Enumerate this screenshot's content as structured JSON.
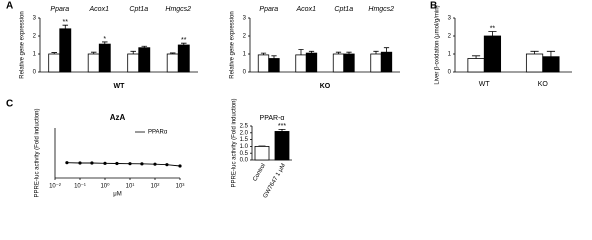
{
  "chart_data": [
    {
      "type": "bar",
      "panel": "A",
      "ylabel": "Relative gene expression",
      "xlabel": "WT",
      "categories": [
        "Ppara",
        "Acox1",
        "Cpt1a",
        "Hmgcs2"
      ],
      "series": [
        {
          "color": "#ffffff",
          "values": [
            1.0,
            1.0,
            1.0,
            1.0
          ],
          "errors": [
            0.08,
            0.1,
            0.15,
            0.06
          ]
        },
        {
          "color": "#000000",
          "values": [
            2.4,
            1.55,
            1.35,
            1.5
          ],
          "errors": [
            0.2,
            0.12,
            0.08,
            0.1
          ],
          "significance": [
            "**",
            "*",
            null,
            "**"
          ]
        }
      ],
      "ylim": [
        0,
        3
      ],
      "yticks": [
        0,
        1,
        2,
        3
      ]
    },
    {
      "type": "bar",
      "ylabel": "Relative gene expression",
      "xlabel": "KO",
      "categories": [
        "Ppara",
        "Acox1",
        "Cpt1a",
        "Hmgcs2"
      ],
      "series": [
        {
          "color": "#ffffff",
          "values": [
            0.95,
            0.95,
            1.0,
            1.0
          ],
          "errors": [
            0.1,
            0.3,
            0.1,
            0.15
          ]
        },
        {
          "color": "#000000",
          "values": [
            0.75,
            1.05,
            1.0,
            1.1
          ],
          "errors": [
            0.15,
            0.1,
            0.1,
            0.25
          ]
        }
      ],
      "ylim": [
        0,
        3
      ],
      "yticks": [
        0,
        1,
        2,
        3
      ]
    },
    {
      "type": "bar",
      "panel": "B",
      "ylabel": "Liver β-oxidation (μmol/g/min)",
      "categories": [
        "WT",
        "KO"
      ],
      "series": [
        {
          "color": "#ffffff",
          "values": [
            0.75,
            1.0
          ],
          "errors": [
            0.15,
            0.15
          ]
        },
        {
          "color": "#000000",
          "values": [
            2.0,
            0.85
          ],
          "errors": [
            0.25,
            0.3
          ],
          "significance": [
            "**",
            null
          ]
        }
      ],
      "ylim": [
        0,
        3
      ],
      "yticks": [
        0,
        1,
        2,
        3
      ]
    },
    {
      "type": "line",
      "panel": "C",
      "title": "AzA",
      "xlabel": "μM",
      "ylabel": "PPRE-luc activity (Fold induction)",
      "x": [
        0.03,
        0.1,
        0.3,
        1,
        3,
        10,
        30,
        100,
        300,
        1000
      ],
      "series": [
        {
          "name": "PPARα",
          "color": "#000000",
          "values": [
            0.92,
            0.9,
            0.9,
            0.88,
            0.87,
            0.86,
            0.85,
            0.83,
            0.8,
            0.72
          ]
        }
      ],
      "xlim": [
        0.01,
        1000
      ],
      "log_x": true,
      "xticks": [
        {
          "value": 0.01,
          "label": "10⁻²"
        },
        {
          "value": 0.1,
          "label": "10⁻¹"
        },
        {
          "value": 1,
          "label": "10⁰"
        },
        {
          "value": 10,
          "label": "10¹"
        },
        {
          "value": 100,
          "label": "10²"
        },
        {
          "value": 1000,
          "label": "10³"
        }
      ],
      "ylim": [
        0,
        3
      ]
    },
    {
      "type": "bar",
      "title": "PPAR-α",
      "ylabel": "PPRE-luc activity (Fold induction)",
      "categories": [
        "Control",
        "GW7647 1 μM"
      ],
      "values": [
        1.0,
        2.1
      ],
      "colors": [
        "#ffffff",
        "#000000"
      ],
      "errors": [
        0.03,
        0.15
      ],
      "significance": [
        null,
        "***"
      ],
      "ylim": [
        0,
        2.5
      ],
      "yticks": [
        {
          "value": 0,
          "label": "0.0"
        },
        {
          "value": 0.5,
          "label": "0.5"
        },
        {
          "value": 1,
          "label": "1.0"
        },
        {
          "value": 1.5,
          "label": "1.5"
        },
        {
          "value": 2,
          "label": "2.0"
        },
        {
          "value": 2.5,
          "label": "2.5"
        }
      ]
    }
  ]
}
